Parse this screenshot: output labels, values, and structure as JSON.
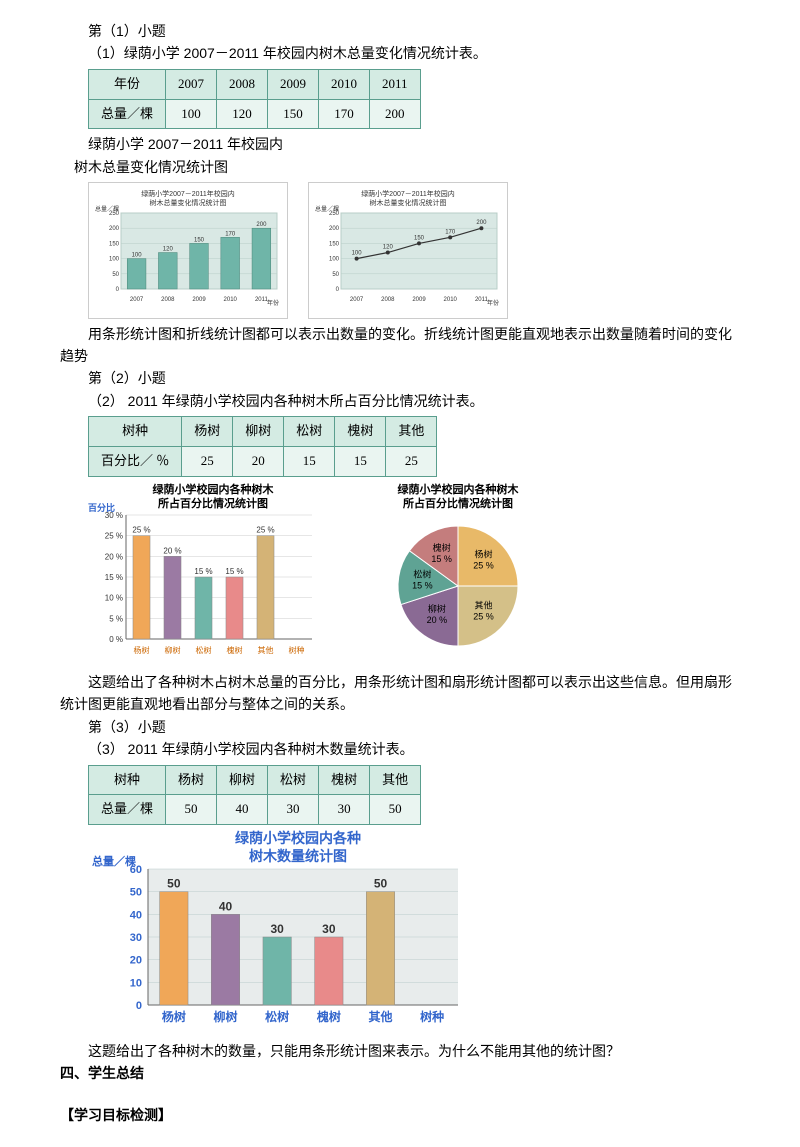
{
  "q1": {
    "hdr": "第（1）小题",
    "txt": "（1）绿荫小学 2007－2011 年校园内树木总量变化情况统计表。"
  },
  "t1": {
    "r1": [
      "年份",
      "2007",
      "2008",
      "2009",
      "2010",
      "2011"
    ],
    "r2": [
      "总量／棵",
      "100",
      "120",
      "150",
      "170",
      "200"
    ]
  },
  "sub1": {
    "l1": "绿荫小学 2007－2011 年校园内",
    "l2": "树木总量变化情况统计图"
  },
  "mini": {
    "title1": "绿荫小学2007－2011年校园内",
    "title2": "树木总量变化情况统计图",
    "ylabel": "总量／棵",
    "xlabel": "年份",
    "years": [
      "2007",
      "2008",
      "2009",
      "2010",
      "2011"
    ],
    "vals": [
      100,
      120,
      150,
      170,
      200
    ],
    "ymax": 250,
    "ystep": 50,
    "barColor": "#6fb5a8",
    "lineColor": "#333",
    "bg": "#d9e8e4",
    "grid": "#b8cec7"
  },
  "p1": "用条形统计图和折线统计图都可以表示出数量的变化。折线统计图更能直观地表示出数量随着时间的变化趋势",
  "q2": {
    "hdr": "第（2）小题",
    "txt": "（2） 2011 年绿荫小学校园内各种树木所占百分比情况统计表。"
  },
  "t2": {
    "r1": [
      "树种",
      "杨树",
      "柳树",
      "松树",
      "槐树",
      "其他"
    ],
    "r2": [
      "百分比／ ％",
      "25",
      "20",
      "15",
      "15",
      "25"
    ]
  },
  "combo": {
    "barTitle1": "绿荫小学校园内各种树木",
    "barTitle2": "所占百分比情况统计图",
    "yLabel": "百分比",
    "pieTitle1": "绿荫小学校园内各种树木",
    "pieTitle2": "所占百分比情况统计图",
    "cats": [
      "杨树",
      "柳树",
      "松树",
      "槐树",
      "其他"
    ],
    "pcts": [
      25,
      20,
      15,
      15,
      25
    ],
    "barColors": [
      "#f0a758",
      "#9b7aa3",
      "#6fb5a8",
      "#e88a8a",
      "#d4b376"
    ],
    "pieColors": [
      "#e8b968",
      "#8a6a94",
      "#5fa394",
      "#c47d7d",
      "#d4c088"
    ],
    "xEnd": "树种",
    "yMax": 30,
    "yStep": 5
  },
  "p2": "这题给出了各种树木占树木总量的百分比，用条形统计图和扇形统计图都可以表示出这些信息。但用扇形统计图更能直观地看出部分与整体之间的关系。",
  "q3": {
    "hdr": "第（3）小题",
    "txt": "（3） 2011 年绿荫小学校园内各种树木数量统计表。"
  },
  "t3": {
    "r1": [
      "树种",
      "杨树",
      "柳树",
      "松树",
      "槐树",
      "其他"
    ],
    "r2": [
      "总量／棵",
      "50",
      "40",
      "30",
      "30",
      "50"
    ]
  },
  "big": {
    "title1": "绿荫小学校园内各种",
    "title2": "树木数量统计图",
    "yLabel": "总量／棵",
    "cats": [
      "杨树",
      "柳树",
      "松树",
      "槐树",
      "其他"
    ],
    "vals": [
      50,
      40,
      30,
      30,
      50
    ],
    "colors": [
      "#f0a758",
      "#9b7aa3",
      "#6fb5a8",
      "#e88a8a",
      "#d4b376"
    ],
    "xEnd": "树种",
    "yMax": 60,
    "yStep": 10,
    "bg": "#e8ecec",
    "titleColor": "#3366cc",
    "labelColor": "#3366cc"
  },
  "p3": "这题给出了各种树木的数量，只能用条形统计图来表示。为什么不能用其他的统计图？",
  "h4": "四、学生总结",
  "h5": "【学习目标检测】"
}
